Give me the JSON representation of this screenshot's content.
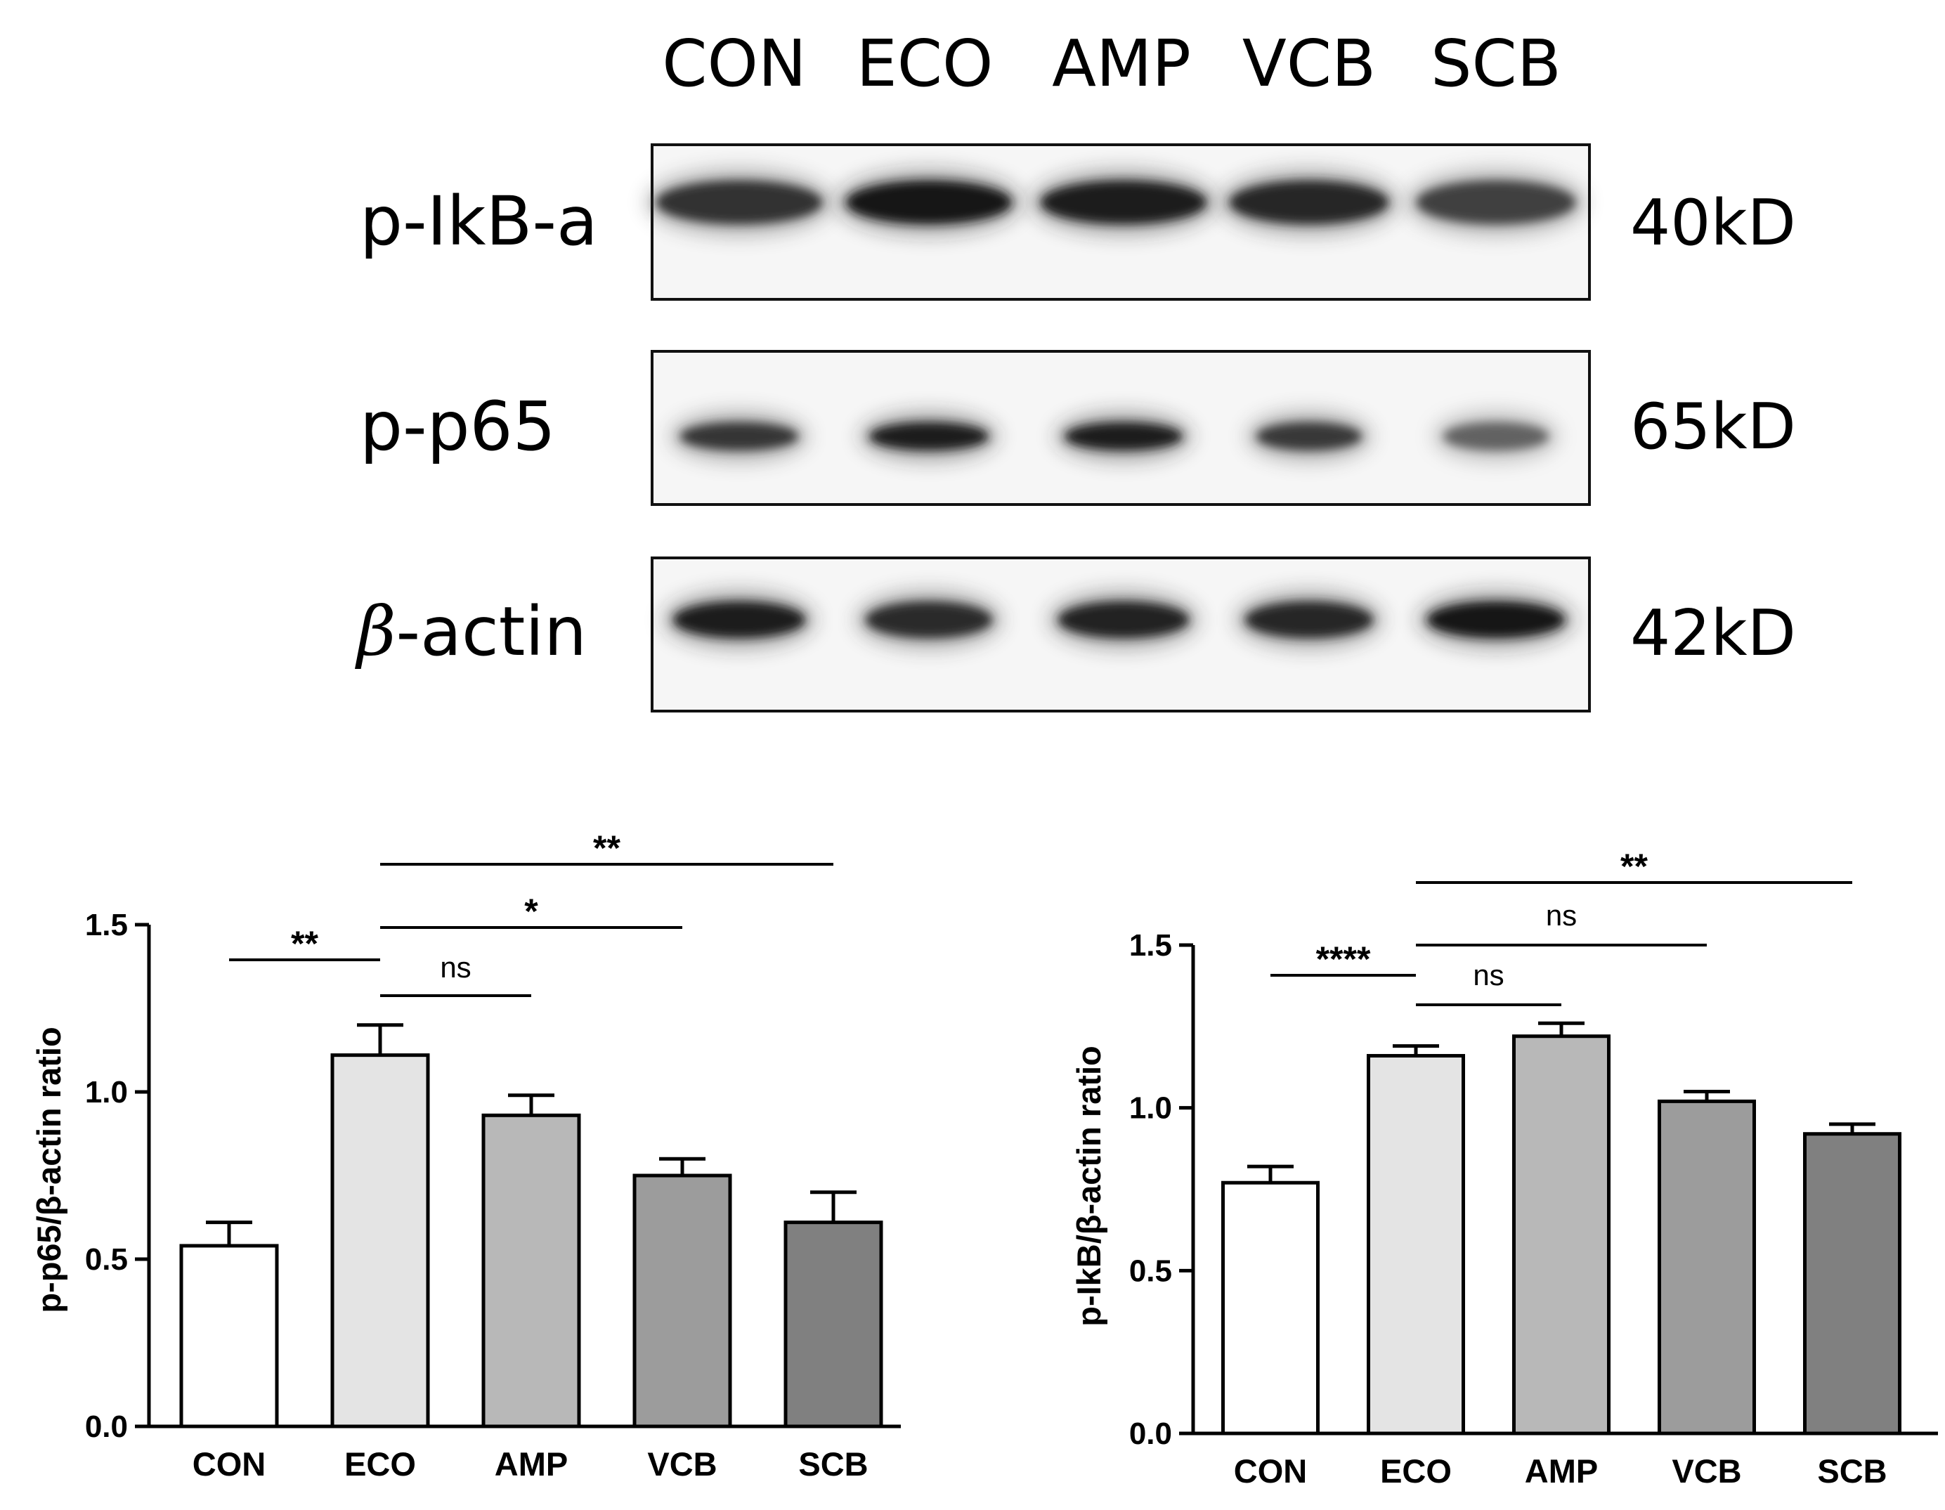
{
  "blot": {
    "lanes": [
      "CON",
      "ECO",
      "AMP",
      "VCB",
      "SCB"
    ],
    "rows": [
      {
        "protein": "p-IkB-a",
        "size": "40kD",
        "intensity": [
          0.82,
          0.96,
          0.92,
          0.86,
          0.74
        ]
      },
      {
        "protein": "p-p65",
        "size": "65kD",
        "intensity": [
          0.8,
          0.92,
          0.9,
          0.78,
          0.58
        ]
      },
      {
        "protein_greek": "β",
        "protein_suffix": "-actin",
        "size": "42kD",
        "intensity": [
          0.92,
          0.84,
          0.88,
          0.86,
          0.94
        ]
      }
    ]
  },
  "chart_data": [
    {
      "type": "bar",
      "categories": [
        "CON",
        "ECO",
        "AMP",
        "VCB",
        "SCB"
      ],
      "values": [
        0.54,
        1.11,
        0.93,
        0.75,
        0.61
      ],
      "errors": [
        0.07,
        0.09,
        0.06,
        0.05,
        0.09
      ],
      "colors": [
        "#ffffff",
        "#e4e4e4",
        "#b8b8b8",
        "#9c9c9c",
        "#808080"
      ],
      "ylabel": "p-p65/β-actin ratio",
      "ylim": [
        0,
        1.5
      ],
      "yticks": [
        "0.0",
        "0.5",
        "1.0",
        "1.5"
      ],
      "grid": false,
      "comparisons": [
        {
          "from": "CON",
          "to": "ECO",
          "label": "**"
        },
        {
          "from": "ECO",
          "to": "AMP",
          "label": "ns"
        },
        {
          "from": "ECO",
          "to": "VCB",
          "label": "*"
        },
        {
          "from": "ECO",
          "to": "SCB",
          "label": "**"
        }
      ]
    },
    {
      "type": "bar",
      "categories": [
        "CON",
        "ECO",
        "AMP",
        "VCB",
        "SCB"
      ],
      "values": [
        0.77,
        1.16,
        1.22,
        1.02,
        0.92
      ],
      "errors": [
        0.05,
        0.03,
        0.04,
        0.03,
        0.03
      ],
      "colors": [
        "#ffffff",
        "#e4e4e4",
        "#b8b8b8",
        "#9c9c9c",
        "#808080"
      ],
      "ylabel": "p-IkB/β-actin ratio",
      "ylim": [
        0,
        1.5
      ],
      "yticks": [
        "0.0",
        "0.5",
        "1.0",
        "1.5"
      ],
      "grid": false,
      "comparisons": [
        {
          "from": "CON",
          "to": "ECO",
          "label": "****"
        },
        {
          "from": "ECO",
          "to": "AMP",
          "label": "ns"
        },
        {
          "from": "ECO",
          "to": "VCB",
          "label": "ns"
        },
        {
          "from": "ECO",
          "to": "SCB",
          "label": "**"
        }
      ]
    }
  ]
}
